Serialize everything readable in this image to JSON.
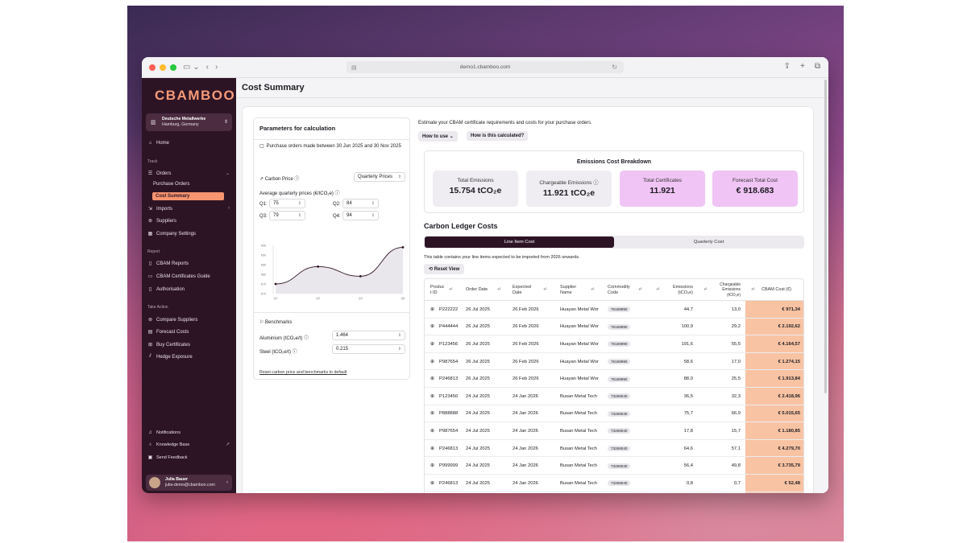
{
  "browser": {
    "url": "demo1.cbamboo.com",
    "tab_icon": "sidebar-icon"
  },
  "brand": {
    "logo": "CBAMBOO",
    "accent": "#f6956f",
    "sidebar_bg": "#2d1425",
    "highlight_tile": "#f0c4f4",
    "cost_column": "#f8c3a3"
  },
  "org": {
    "name": "Deutsche Metallwerke",
    "location": "Hamburg, Germany"
  },
  "sidebar": {
    "home": "Home",
    "track_label": "Track",
    "orders": "Orders",
    "purchase_orders": "Purchase Orders",
    "cost_summary": "Cost Summary",
    "imports": "Imports",
    "suppliers": "Suppliers",
    "company_settings": "Company Settings",
    "report_label": "Report",
    "cbam_reports": "CBAM Reports",
    "cbam_guide": "CBAM Certificates Guide",
    "authorisation": "Authorisation",
    "take_action_label": "Take Action",
    "compare_suppliers": "Compare Suppliers",
    "forecast_costs": "Forecast Costs",
    "buy_certificates": "Buy Certificates",
    "hedge_exposure": "Hedge Exposure",
    "notifications": "Notifications",
    "knowledge_base": "Knowledge Base",
    "send_feedback": "Send Feedback"
  },
  "user": {
    "name": "Julia Bauer",
    "email": "julia-demo@cbamboo.com"
  },
  "page": {
    "title": "Cost Summary"
  },
  "params": {
    "title": "Parameters for calculation",
    "description": "Purchase orders made between 30 Jun 2025 and 30 Nov 2025",
    "carbon_price_label": "Carbon Price",
    "price_mode": "Quarterly Prices",
    "avg_label": "Average quarterly prices (€/tCO₂e)",
    "q1_label": "Q1:",
    "q1": "75",
    "q2_label": "Q2:",
    "q2": "84",
    "q3_label": "Q3:",
    "q3": "79",
    "q4_label": "Q4:",
    "q4": "94",
    "benchmarks_label": "Benchmarks",
    "aluminium_label": "Aluminium (tCO₂e/t)",
    "aluminium": "1.464",
    "steel_label": "Steel (tCO₂e/t)",
    "steel": "0.215",
    "reset_link": "Reset carbon price and benchmarks to default"
  },
  "chart_data": {
    "type": "line",
    "categories": [
      "Q1",
      "Q2",
      "Q3",
      "Q4"
    ],
    "values": [
      75,
      84,
      79,
      94
    ],
    "yticks": [
      "€70",
      "€75",
      "€80",
      "€85",
      "€90",
      "€95"
    ],
    "ylim": [
      70,
      95
    ],
    "grid": false
  },
  "intro": "Estimate your CBAM certificate requirements and costs for your purchase orders.",
  "buttons": {
    "how_to_use": "How to use",
    "how_calc": "How is this calculated?",
    "reset_view": "Reset View"
  },
  "breakdown": {
    "title": "Emissions Cost Breakdown",
    "total_emissions_label": "Total Emissions",
    "total_emissions": "15.754 tCO₂e",
    "chargeable_label": "Chargeable Emissions",
    "chargeable": "11.921 tCO₂e",
    "certificates_label": "Total Certificates",
    "certificates": "11.921",
    "forecast_label": "Forecast Total Cost",
    "forecast": "€ 918.683"
  },
  "ledger": {
    "title": "Carbon Ledger Costs",
    "tab_line": "Line Item Cost",
    "tab_quarterly": "Quarterly Cost",
    "note": "This table contains your line items expected to be imported from 2026 onwards."
  },
  "table": {
    "headers": {
      "product": "Produc\nt ID",
      "order_date": "Order Date",
      "expected_date": "Expected\nDate",
      "supplier": "Supplier\nName",
      "commodity": "Commodity\nCode",
      "emissions": "Emissions\n(tCO₂e)",
      "chargeable": "Chargeable\nEmissions\n(tCO₂e)",
      "cbam_cost": "CBAM Cost (€)"
    },
    "rows": [
      {
        "id": "P222222",
        "order": "26 Jul 2025",
        "expected": "26 Feb 2026",
        "supplier": "Huayan Metal Wor",
        "code": "76169990",
        "emissions": "44,7",
        "chargeable": "13,0",
        "cost": "€ 971,34"
      },
      {
        "id": "P444444",
        "order": "26 Jul 2025",
        "expected": "26 Feb 2026",
        "supplier": "Huayan Metal Wor",
        "code": "76169990",
        "emissions": "100,9",
        "chargeable": "29,2",
        "cost": "€ 2.192,62"
      },
      {
        "id": "P123456",
        "order": "26 Jul 2025",
        "expected": "26 Feb 2026",
        "supplier": "Huayan Metal Wor",
        "code": "76169990",
        "emissions": "191,6",
        "chargeable": "55,5",
        "cost": "€ 4.164,57"
      },
      {
        "id": "P987654",
        "order": "26 Jul 2025",
        "expected": "26 Feb 2026",
        "supplier": "Huayan Metal Wor",
        "code": "76169990",
        "emissions": "58,6",
        "chargeable": "17,0",
        "cost": "€ 1.274,15"
      },
      {
        "id": "P246813",
        "order": "26 Jul 2025",
        "expected": "26 Feb 2026",
        "supplier": "Huayan Metal Wor",
        "code": "76169990",
        "emissions": "88,0",
        "chargeable": "25,5",
        "cost": "€ 1.913,84"
      },
      {
        "id": "P123456",
        "order": "24 Jul 2025",
        "expected": "24 Jan 2026",
        "supplier": "Busan Metal Tech",
        "code": "73269040",
        "emissions": "36,5",
        "chargeable": "32,3",
        "cost": "€ 2.418,96"
      },
      {
        "id": "P888888",
        "order": "24 Jul 2025",
        "expected": "24 Jan 2026",
        "supplier": "Busan Metal Tech",
        "code": "73269040",
        "emissions": "75,7",
        "chargeable": "66,9",
        "cost": "€ 5.015,65"
      },
      {
        "id": "P987654",
        "order": "24 Jul 2025",
        "expected": "24 Jan 2026",
        "supplier": "Busan Metal Tech",
        "code": "73269040",
        "emissions": "17,8",
        "chargeable": "15,7",
        "cost": "€ 1.180,85"
      },
      {
        "id": "P246813",
        "order": "24 Jul 2025",
        "expected": "24 Jan 2026",
        "supplier": "Busan Metal Tech",
        "code": "73269040",
        "emissions": "64,6",
        "chargeable": "57,1",
        "cost": "€ 4.279,70"
      },
      {
        "id": "P999999",
        "order": "24 Jul 2025",
        "expected": "24 Jan 2026",
        "supplier": "Busan Metal Tech",
        "code": "73269040",
        "emissions": "56,4",
        "chargeable": "49,8",
        "cost": "€ 3.735,79"
      },
      {
        "id": "P246813",
        "order": "24 Jul 2025",
        "expected": "24 Jan 2026",
        "supplier": "Busan Metal Tech",
        "code": "73269040",
        "emissions": "0,8",
        "chargeable": "0,7",
        "cost": "€ 52,48"
      }
    ]
  }
}
